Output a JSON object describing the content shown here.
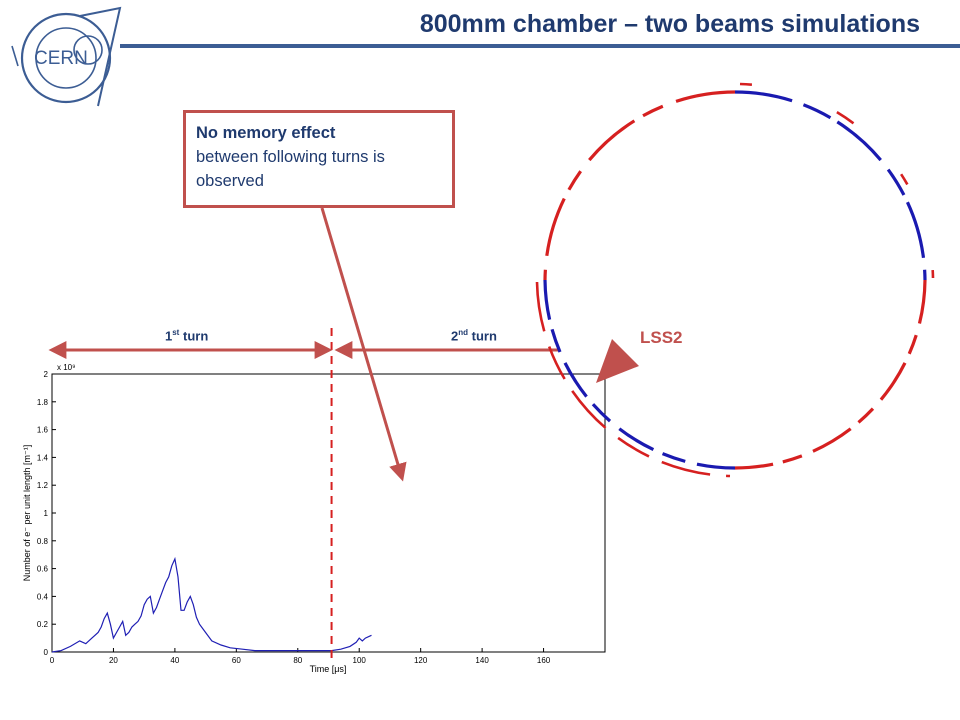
{
  "header": {
    "title": "800mm chamber – two beams simulations",
    "logo_text": "CERN"
  },
  "callout": {
    "bold_text": "No memory effect",
    "text": "between following turns is observed"
  },
  "turn_markers": {
    "first": {
      "number": "1",
      "suffix": "st",
      "word": "turn"
    },
    "second": {
      "number": "2",
      "suffix": "nd",
      "word": "turn"
    }
  },
  "lss_label": "LSS2",
  "colors": {
    "title": "#1f3a6e",
    "accent": "#c0504d",
    "series": "#1f1fb4",
    "beam_red": "#d62020",
    "beam_blue": "#1a1ab0"
  },
  "chart_data": {
    "type": "line",
    "xlabel": "Time [μs]",
    "ylabel": "Number of e⁻ per unit length [m⁻¹]",
    "y_multiplier": "x 10⁹",
    "xlim": [
      0,
      180
    ],
    "ylim": [
      0,
      2
    ],
    "x_ticks": [
      0,
      20,
      40,
      60,
      80,
      100,
      120,
      140,
      160
    ],
    "y_ticks": [
      0,
      0.2,
      0.4,
      0.6,
      0.8,
      1,
      1.2,
      1.4,
      1.6,
      1.8,
      2
    ],
    "turn_boundary_x": 91,
    "series": [
      {
        "x": [
          0,
          3,
          6,
          9,
          11,
          13,
          15,
          16,
          17,
          18,
          19,
          20,
          21,
          22,
          23,
          24,
          25,
          26,
          27,
          28,
          29,
          30,
          31,
          32,
          33,
          34,
          35,
          36,
          37,
          38,
          39,
          40,
          41,
          42,
          43,
          44,
          45,
          46,
          47,
          48,
          50,
          52,
          55,
          58,
          62,
          66,
          70,
          75,
          80,
          85,
          88,
          91,
          94,
          97,
          99,
          100,
          101,
          102,
          104
        ],
        "y": [
          0,
          0.01,
          0.04,
          0.08,
          0.06,
          0.1,
          0.14,
          0.18,
          0.24,
          0.28,
          0.2,
          0.1,
          0.14,
          0.18,
          0.22,
          0.12,
          0.14,
          0.18,
          0.2,
          0.22,
          0.26,
          0.34,
          0.38,
          0.4,
          0.28,
          0.32,
          0.38,
          0.44,
          0.5,
          0.54,
          0.62,
          0.67,
          0.54,
          0.3,
          0.3,
          0.36,
          0.4,
          0.34,
          0.25,
          0.2,
          0.14,
          0.08,
          0.05,
          0.03,
          0.02,
          0.01,
          0.01,
          0.01,
          0.01,
          0.01,
          0.01,
          0.01,
          0.02,
          0.04,
          0.07,
          0.1,
          0.08,
          0.1,
          0.12
        ]
      }
    ]
  }
}
